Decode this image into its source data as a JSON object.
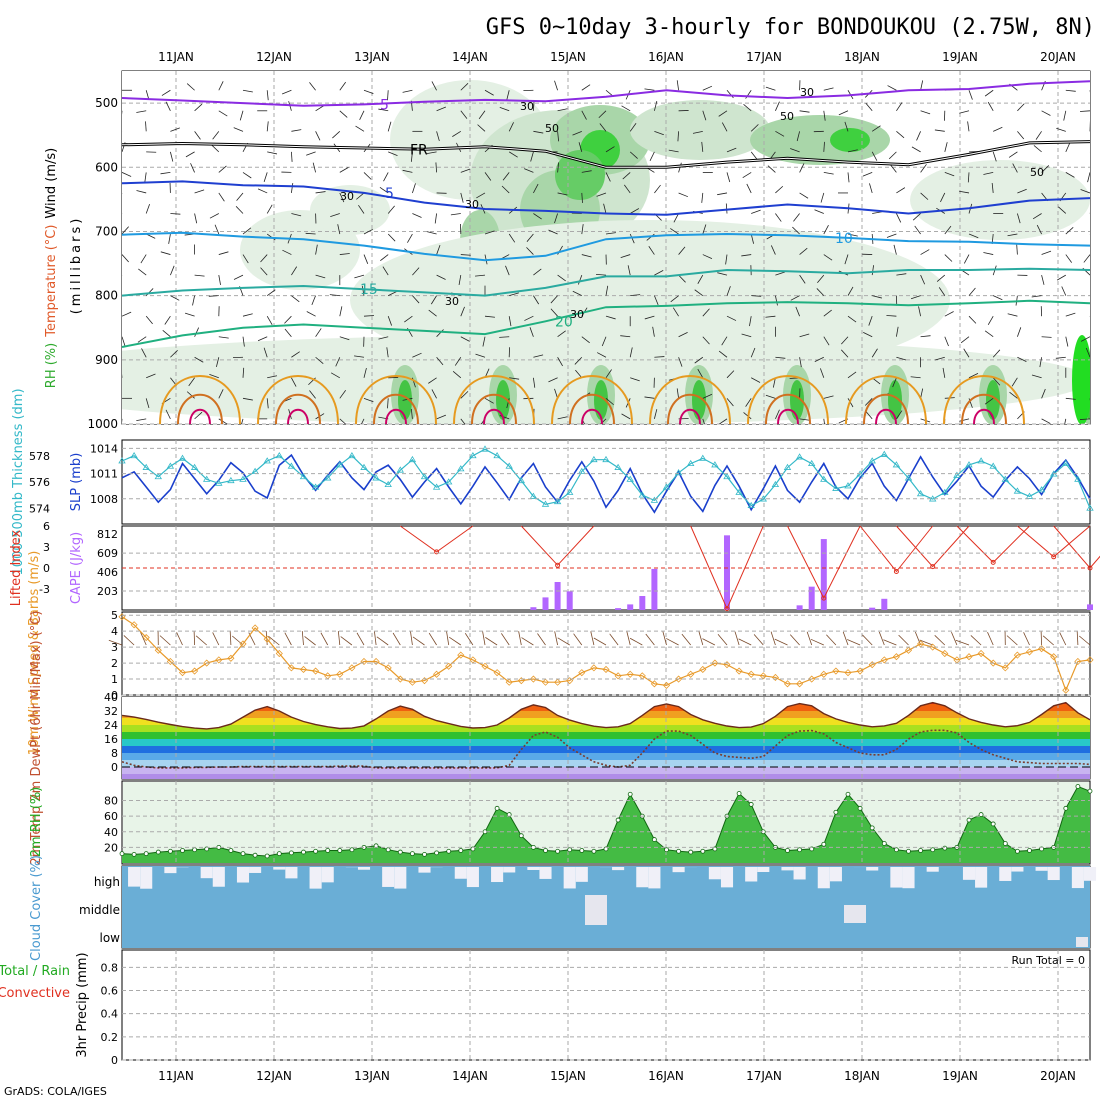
{
  "title": "GFS 0~10day 3-hourly for BONDOUKOU (2.75W, 8N)",
  "footer": "GrADS: COLA/IGES",
  "days": [
    "11JAN",
    "12JAN",
    "13JAN",
    "14JAN",
    "15JAN",
    "16JAN",
    "17JAN",
    "18JAN",
    "19JAN",
    "20JAN"
  ],
  "colors": {
    "slp": "#1a3fcc",
    "thickness": "#33b8c8",
    "lifted": "#e03020",
    "cape": "#b266ff",
    "wind10": "#e89a2a",
    "rh2m": "#22aa22",
    "cloud": "#6aaed6",
    "dewpt": "#7a3b2e"
  },
  "chart_data": [
    {
      "type": "heatmap",
      "name": "upper-air",
      "ylabel_parts": [
        "RH (%)",
        "Temperature (°C)",
        "Wind (m/s)"
      ],
      "ylabel_units": "(millibars)",
      "y_ticks": [
        500,
        600,
        700,
        800,
        900,
        1000
      ],
      "ylim": [
        450,
        1000
      ],
      "rh_labels": [
        "30",
        "30",
        "30",
        "30",
        "30",
        "50",
        "50",
        "50",
        "30"
      ],
      "isotherms": [
        {
          "label": "5",
          "p": [
            492,
            496,
            500,
            504,
            502,
            498,
            495,
            497,
            490,
            480,
            488,
            492,
            488,
            480,
            478,
            470,
            466
          ],
          "color": "#8a2be2"
        },
        {
          "label": "FR",
          "p": [
            565,
            563,
            565,
            568,
            570,
            572,
            568,
            575,
            600,
            600,
            592,
            586,
            592,
            596,
            580,
            562,
            560
          ],
          "color": "#000000"
        },
        {
          "label": "5",
          "p": [
            625,
            622,
            628,
            630,
            640,
            655,
            665,
            668,
            672,
            674,
            666,
            658,
            664,
            672,
            664,
            652,
            648
          ],
          "color": "#1f3fd0"
        },
        {
          "label": "10",
          "p": [
            705,
            702,
            708,
            712,
            722,
            735,
            745,
            738,
            712,
            706,
            704,
            706,
            710,
            715,
            716,
            720,
            722
          ],
          "color": "#1f9ae0"
        },
        {
          "label": "15",
          "p": [
            800,
            792,
            788,
            785,
            790,
            795,
            800,
            788,
            770,
            770,
            760,
            762,
            765,
            760,
            760,
            758,
            760
          ],
          "color": "#2aaaa0"
        },
        {
          "label": "20",
          "p": [
            880,
            862,
            850,
            845,
            850,
            855,
            860,
            840,
            818,
            816,
            812,
            810,
            812,
            815,
            812,
            808,
            812
          ],
          "color": "#20b080"
        }
      ]
    },
    {
      "type": "line",
      "name": "thickness-slp",
      "ylabel_left": "1000-500mb Thickness (dm)",
      "ylabel_right": "SLP (mb)",
      "left_ticks": [
        "578",
        "576",
        "574"
      ],
      "right_ticks": [
        "1014",
        "1011",
        "1008"
      ],
      "series": [
        {
          "name": "SLP",
          "values": [
            1010.5,
            1011.2,
            1009.4,
            1007.6,
            1009.1,
            1012.2,
            1010.4,
            1008.6,
            1010.2,
            1012.3,
            1011.1,
            1008.9,
            1008.1,
            1012.0,
            1013.2,
            1010.8,
            1009.0,
            1010.8,
            1012.4,
            1010.5,
            1009.1,
            1011.2,
            1012.0,
            1010.3,
            1008.2,
            1010.0,
            1011.6,
            1009.4,
            1007.4,
            1009.5,
            1011.8,
            1009.9,
            1007.9,
            1010.5,
            1012.2,
            1009.4,
            1007.6,
            1010.2,
            1012.4,
            1010.1,
            1007.0,
            1009.0,
            1011.6,
            1008.6,
            1006.4,
            1008.9,
            1011.2,
            1008.3,
            1006.5,
            1009.6,
            1011.9,
            1009.5,
            1006.7,
            1009.2,
            1011.9,
            1009.0,
            1007.6,
            1010.0,
            1012.2,
            1009.4,
            1008.0,
            1010.5,
            1012.2,
            1009.5,
            1007.8,
            1010.4,
            1013.0,
            1010.6,
            1008.5,
            1010.1,
            1011.9,
            1009.5,
            1008.2,
            1010.2,
            1011.8,
            1010.4,
            1008.5,
            1011.0,
            1012.6,
            1010.5,
            1008.0
          ]
        },
        {
          "name": "Thickness",
          "values": [
            577.6,
            578.0,
            577.1,
            576.4,
            577.2,
            577.8,
            577.1,
            576.2,
            575.9,
            576.1,
            576.2,
            576.8,
            577.6,
            578.0,
            577.2,
            576.4,
            575.6,
            576.3,
            577.3,
            578.0,
            577.1,
            576.3,
            575.8,
            576.9,
            577.7,
            576.4,
            575.6,
            576.0,
            577.0,
            578.0,
            578.5,
            578.0,
            577.2,
            576.1,
            574.9,
            574.3,
            574.5,
            575.2,
            576.8,
            577.7,
            577.7,
            577.1,
            576.2,
            575.0,
            574.6,
            575.6,
            576.7,
            577.4,
            577.8,
            577.3,
            576.4,
            575.2,
            574.2,
            574.7,
            575.8,
            577.1,
            577.9,
            577.4,
            576.2,
            575.5,
            575.7,
            576.6,
            577.6,
            578.1,
            577.3,
            576.3,
            575.1,
            574.7,
            575.2,
            576.5,
            577.3,
            577.6,
            577.2,
            576.2,
            575.3,
            574.9,
            575.4,
            576.6,
            577.4,
            576.2,
            574.0
          ]
        }
      ]
    },
    {
      "type": "bar",
      "name": "lifted-cape",
      "ylabel_left": "Lifted Index",
      "ylabel_right": "CAPE (J/kg)",
      "left_ticks": [
        "-3",
        "0",
        "3",
        "6"
      ],
      "right_ticks": [
        "812",
        "609",
        "406",
        "203"
      ],
      "cape_bars": [
        [
          34,
          30
        ],
        [
          35,
          135
        ],
        [
          36,
          300
        ],
        [
          37,
          200
        ],
        [
          41,
          20
        ],
        [
          42,
          60
        ],
        [
          43,
          150
        ],
        [
          44,
          440
        ],
        [
          50,
          800
        ],
        [
          56,
          50
        ],
        [
          57,
          250
        ],
        [
          58,
          760
        ],
        [
          62,
          25
        ],
        [
          63,
          120
        ],
        [
          80,
          60
        ]
      ],
      "lifted_peaks": [
        [
          26,
          2.3
        ],
        [
          36,
          0.4
        ],
        [
          50,
          -5.8
        ],
        [
          58,
          -4.3
        ],
        [
          64,
          -0.5
        ],
        [
          67,
          0.2
        ],
        [
          72,
          0.8
        ],
        [
          77,
          1.6
        ],
        [
          80,
          0.0
        ]
      ]
    },
    {
      "type": "line",
      "name": "wind-10m",
      "ylabel": "10m Wind Speed & Barbs (m/s)",
      "y_ticks": [
        0,
        1,
        2,
        3,
        4,
        5
      ],
      "values": [
        4.9,
        4.4,
        3.6,
        2.8,
        2.1,
        1.4,
        1.5,
        2.0,
        2.2,
        2.3,
        3.2,
        4.2,
        3.5,
        2.6,
        1.7,
        1.6,
        1.5,
        1.2,
        1.3,
        1.7,
        2.1,
        2.1,
        1.7,
        1.0,
        0.8,
        0.9,
        1.3,
        1.8,
        2.5,
        2.2,
        1.8,
        1.4,
        0.8,
        0.9,
        1.0,
        0.8,
        0.8,
        0.9,
        1.4,
        1.7,
        1.6,
        1.2,
        1.3,
        1.2,
        0.7,
        0.6,
        1.0,
        1.3,
        1.6,
        2.0,
        1.9,
        1.5,
        1.3,
        1.2,
        1.1,
        0.7,
        0.7,
        1.0,
        1.3,
        1.5,
        1.4,
        1.5,
        1.9,
        2.2,
        2.4,
        2.8,
        3.2,
        3.0,
        2.6,
        2.2,
        2.4,
        2.6,
        2.0,
        1.7,
        2.5,
        2.7,
        2.9,
        2.4,
        0.3,
        2.1,
        2.2
      ]
    },
    {
      "type": "area",
      "name": "temp-2m",
      "ylabel": "2m Temp 2m DewPt (6hr Min/Max) (°C)",
      "y_ticks": [
        0,
        8,
        16,
        24,
        32,
        40
      ],
      "temp": [
        29.5,
        28.5,
        27.2,
        25.6,
        24.3,
        23.1,
        22.2,
        21.8,
        22.5,
        24.5,
        28.5,
        32.5,
        34.5,
        32.0,
        28.5,
        26.0,
        24.2,
        23.0,
        22.0,
        22.2,
        23.5,
        27.5,
        32.0,
        34.8,
        33.0,
        29.0,
        26.5,
        24.8,
        23.2,
        22.3,
        22.5,
        24.0,
        28.0,
        33.0,
        35.5,
        34.0,
        29.5,
        26.8,
        24.8,
        23.3,
        22.5,
        23.0,
        24.8,
        29.5,
        34.5,
        36.0,
        34.5,
        30.0,
        27.0,
        25.0,
        23.4,
        22.5,
        22.8,
        24.8,
        29.0,
        34.5,
        36.2,
        35.0,
        30.5,
        27.5,
        25.5,
        24.0,
        23.0,
        23.5,
        25.0,
        29.5,
        35.0,
        36.8,
        35.0,
        31.0,
        27.5,
        25.5,
        24.0,
        23.0,
        23.6,
        25.5,
        30.0,
        35.0,
        36.8,
        31.0,
        27.0
      ],
      "dewpt": [
        3.0,
        1.0,
        0.0,
        -0.5,
        -0.5,
        -0.5,
        -0.3,
        -0.2,
        0.0,
        0.0,
        0.3,
        0.3,
        0.3,
        0.3,
        0.3,
        0.3,
        0.3,
        0.3,
        0.5,
        0.5,
        0.5,
        -0.5,
        -0.5,
        -0.5,
        -0.5,
        -0.5,
        -0.5,
        -0.5,
        -0.5,
        -0.5,
        -0.5,
        -0.5,
        1.0,
        10.0,
        18.0,
        20.0,
        17.0,
        11.0,
        7.0,
        3.0,
        1.0,
        0.0,
        1.0,
        8.0,
        16.0,
        20.5,
        20.5,
        18.0,
        13.0,
        8.0,
        6.0,
        5.5,
        5.0,
        6.0,
        12.0,
        18.0,
        20.5,
        20.8,
        19.0,
        14.0,
        11.0,
        8.0,
        7.0,
        7.0,
        10.0,
        16.0,
        20.0,
        21.0,
        21.0,
        19.5,
        14.0,
        10.0,
        7.0,
        5.0,
        3.0,
        2.5,
        2.0,
        2.0,
        2.0,
        2.0,
        1.5
      ]
    },
    {
      "type": "area",
      "name": "rh-2m",
      "ylabel": "2m RH (%)",
      "y_ticks": [
        20,
        40,
        60,
        80
      ],
      "values": [
        12,
        11,
        12,
        14,
        15,
        16,
        17,
        18,
        20,
        16,
        12,
        10,
        9,
        12,
        13,
        14,
        15,
        16,
        16,
        17,
        20,
        22,
        17,
        14,
        12,
        11,
        13,
        15,
        16,
        18,
        40,
        70,
        62,
        35,
        20,
        16,
        15,
        17,
        16,
        15,
        18,
        55,
        88,
        60,
        30,
        17,
        15,
        14,
        15,
        18,
        60,
        89,
        75,
        40,
        20,
        16,
        17,
        18,
        24,
        65,
        88,
        70,
        45,
        25,
        17,
        15,
        16,
        17,
        19,
        20,
        55,
        62,
        50,
        25,
        15,
        16,
        18,
        20,
        70,
        98,
        92
      ]
    },
    {
      "type": "heatmap",
      "name": "cloud-cover",
      "ylabel": "Cloud Cover (%)",
      "layers": [
        "high",
        "middle",
        "low"
      ]
    },
    {
      "type": "bar",
      "name": "precip",
      "ylabel": "3hr Precip (mm)",
      "ylabel_left_lines": [
        "Total / Rain",
        "Convective"
      ],
      "y_ticks": [
        "0",
        "0.2",
        "0.4",
        "0.6",
        "0.8"
      ],
      "run_total": "Run Total = 0",
      "values": []
    }
  ]
}
